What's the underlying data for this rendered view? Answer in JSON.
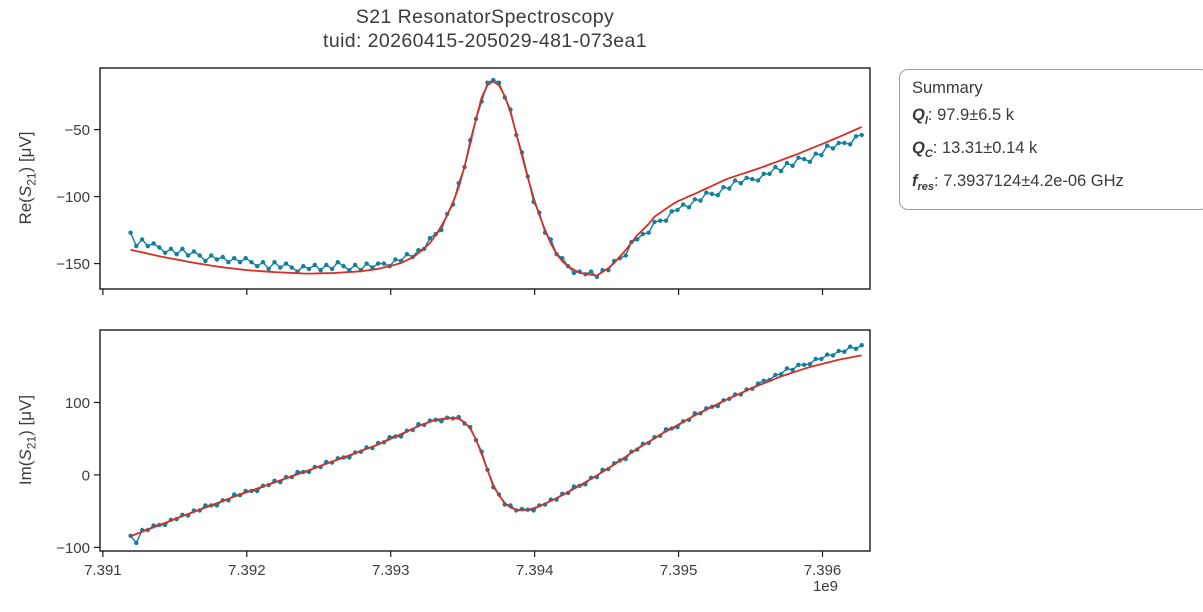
{
  "title": {
    "line1": "S21 ResonatorSpectroscopy",
    "line2": "tuid: 20260415-205029-481-073ea1"
  },
  "summary": {
    "heading": "Summary",
    "items": [
      {
        "sym": "Q",
        "sub": "l",
        "value": ": 97.9±6.5 k"
      },
      {
        "sym": "Q",
        "sub": "C",
        "value": ": 13.31±0.14 k"
      },
      {
        "sym": "f",
        "sub": "res",
        "value": ": 7.3937124±4.2e-06 GHz"
      }
    ]
  },
  "colors": {
    "data": "#11809c",
    "fit": "#d62f27",
    "axis": "#1a1a1a",
    "text": "#3c3c3c",
    "box_border": "#9b9b9b"
  },
  "chart_data": {
    "type": "line",
    "title": "S21 ResonatorSpectroscopy / tuid: 20260415-205029-481-073ea1",
    "xlabel_offset": "1e9",
    "x_unit": "Hz (axis shows GHz values × 1e9)",
    "xlim": [
      7.39098,
      7.39633
    ],
    "x_ticks": [
      {
        "v": 7.391,
        "label": "7.391"
      },
      {
        "v": 7.392,
        "label": "7.392"
      },
      {
        "v": 7.393,
        "label": "7.393"
      },
      {
        "v": 7.394,
        "label": "7.394"
      },
      {
        "v": 7.395,
        "label": "7.395"
      },
      {
        "v": 7.396,
        "label": "7.396"
      }
    ],
    "x_start": 7.3911924,
    "x_step": 4e-05,
    "n_points": 128,
    "f_res_ghz": 7.3937124,
    "plots": [
      {
        "name": "re",
        "ylabel": {
          "pre": "Re(",
          "sym": "S",
          "sub": "21",
          "post": ") [μV]"
        },
        "ylim": [
          -169,
          -4
        ],
        "y_ticks": [
          {
            "v": -50,
            "label": "−50"
          },
          {
            "v": -100,
            "label": "−100"
          },
          {
            "v": -150,
            "label": "−150"
          }
        ],
        "series": [
          {
            "name": "measured data",
            "role": "data",
            "y": [
              -127,
              -137,
              -132,
              -137,
              -135,
              -138,
              -142,
              -139,
              -143,
              -139,
              -144,
              -141,
              -144,
              -148,
              -144,
              -147,
              -145,
              -149,
              -146,
              -149,
              -146,
              -149,
              -152,
              -149,
              -154,
              -149,
              -153,
              -150,
              -153,
              -156,
              -152,
              -154,
              -151,
              -155,
              -151,
              -154,
              -149,
              -152,
              -155,
              -151,
              -155,
              -150,
              -153,
              -150,
              -150,
              -152,
              -147,
              -148,
              -143,
              -145,
              -140,
              -139,
              -131,
              -128,
              -125,
              -113,
              -106,
              -90,
              -78,
              -58,
              -42,
              -29,
              -15,
              -13,
              -15,
              -26,
              -35,
              -54,
              -67,
              -85,
              -104,
              -112,
              -127,
              -132,
              -143,
              -146,
              -152,
              -157,
              -156,
              -158,
              -156,
              -160,
              -155,
              -155,
              -148,
              -146,
              -144,
              -134,
              -132,
              -128,
              -127,
              -119,
              -118,
              -118,
              -111,
              -110,
              -106,
              -108,
              -102,
              -103,
              -97,
              -98,
              -99,
              -93,
              -94,
              -88,
              -90,
              -86,
              -87,
              -88,
              -83,
              -83,
              -78,
              -81,
              -75,
              -77,
              -71,
              -72,
              -74,
              -68,
              -69,
              -62,
              -64,
              -60,
              -60,
              -61,
              -55,
              -54
            ]
          },
          {
            "name": "fit",
            "role": "fit",
            "y": [
              -139.7,
              -140.7,
              -141.6,
              -142.6,
              -143.6,
              -144.5,
              -145.4,
              -146.2,
              -147,
              -147.8,
              -148.6,
              -149.4,
              -150.1,
              -150.8,
              -151.5,
              -152.2,
              -152.8,
              -153.3,
              -153.8,
              -154.3,
              -154.8,
              -155.2,
              -155.5,
              -155.8,
              -156.1,
              -156.4,
              -156.6,
              -156.8,
              -157,
              -157.2,
              -157.4,
              -157.5,
              -157.4,
              -157.3,
              -157.2,
              -157.1,
              -156.9,
              -156.6,
              -156.3,
              -156.1,
              -155.7,
              -155.2,
              -154.6,
              -154,
              -152.9,
              -151.9,
              -150.8,
              -149.5,
              -147.5,
              -145.5,
              -142.3,
              -138.7,
              -134.6,
              -128.9,
              -122,
              -114,
              -104.3,
              -93,
              -77.7,
              -60.7,
              -42,
              -26,
              -16.8,
              -14,
              -17,
              -25,
              -37,
              -53,
              -69.6,
              -85.7,
              -101,
              -113.7,
              -125,
              -135,
              -142.8,
              -148.3,
              -152.2,
              -154.6,
              -157,
              -157.7,
              -158.3,
              -159,
              -156.2,
              -153.4,
              -149.6,
              -144.8,
              -140,
              -134.4,
              -128.8,
              -124.8,
              -120.4,
              -115,
              -112.1,
              -109.1,
              -106.2,
              -103.5,
              -101.7,
              -99.8,
              -97.9,
              -96,
              -94,
              -92,
              -90,
              -88,
              -86.3,
              -84.8,
              -83.4,
              -82,
              -80.5,
              -79.1,
              -77.6,
              -76,
              -74.4,
              -72.8,
              -71.2,
              -69.6,
              -68,
              -66.2,
              -64.5,
              -62.7,
              -61,
              -59.2,
              -57.4,
              -55.6,
              -53.7,
              -51.8,
              -49.9,
              -48
            ]
          }
        ]
      },
      {
        "name": "im",
        "ylabel": {
          "pre": "Im(",
          "sym": "S",
          "sub": "21",
          "post": ") [μV]"
        },
        "ylim": [
          -105,
          200
        ],
        "y_ticks": [
          {
            "v": 100,
            "label": "100"
          },
          {
            "v": 0,
            "label": "0"
          },
          {
            "v": -100,
            "label": "−100"
          }
        ],
        "series": [
          {
            "name": "measured data",
            "role": "data",
            "y": [
              -84,
              -94,
              -76,
              -76,
              -70,
              -69,
              -69,
              -62,
              -61,
              -55,
              -56,
              -49,
              -49,
              -42,
              -42,
              -42,
              -35,
              -35,
              -27,
              -28,
              -22,
              -22,
              -22,
              -15,
              -14,
              -8,
              -10,
              -3,
              -3,
              4,
              4,
              4,
              11,
              11,
              18,
              17,
              23,
              24,
              24,
              31,
              32,
              38,
              37,
              44,
              45,
              52,
              53,
              53,
              61,
              62,
              70,
              69,
              75,
              76,
              74,
              79,
              78,
              80,
              71,
              66,
              48,
              32,
              7,
              -17,
              -27,
              -41,
              -42,
              -49,
              -47,
              -48,
              -49,
              -42,
              -41,
              -34,
              -34,
              -26,
              -25,
              -16,
              -15,
              -13,
              -4,
              -3,
              7,
              8,
              16,
              20,
              22,
              32,
              35,
              43,
              44,
              52,
              54,
              63,
              64,
              66,
              74,
              76,
              85,
              85,
              92,
              94,
              95,
              103,
              105,
              111,
              111,
              118,
              119,
              126,
              130,
              131,
              138,
              139,
              147,
              145,
              152,
              152,
              153,
              160,
              160,
              166,
              165,
              171,
              170,
              177,
              174,
              179
            ]
          },
          {
            "name": "fit",
            "role": "fit",
            "y": [
              -84.7,
              -81.6,
              -78.5,
              -75.4,
              -72.3,
              -69.3,
              -66.2,
              -63.1,
              -60,
              -57,
              -54,
              -51,
              -48,
              -45,
              -42,
              -39,
              -36,
              -33,
              -30,
              -27.2,
              -24.4,
              -21.6,
              -18.8,
              -16,
              -13.2,
              -10.4,
              -7.6,
              -4.8,
              -2,
              0.9,
              3.8,
              6.7,
              9.6,
              12.5,
              15.4,
              18.3,
              21.2,
              24.1,
              27,
              30,
              33,
              36,
              39,
              42,
              45.6,
              49.2,
              52.8,
              56.4,
              60,
              63.6,
              67.2,
              70.4,
              73.2,
              76,
              77.2,
              78.4,
              78.5,
              77.5,
              72.7,
              64.1,
              48.8,
              28.8,
              6.8,
              -14,
              -28.4,
              -38.6,
              -45,
              -48.1,
              -48.7,
              -48,
              -46,
              -43.2,
              -39.6,
              -36,
              -32,
              -28,
              -23.7,
              -19.2,
              -14.7,
              -10.1,
              -5.4,
              -0.6,
              4.2,
              9,
              14.4,
              19.8,
              25.2,
              30.6,
              36,
              40.8,
              45.6,
              50.4,
              55.2,
              60,
              64.4,
              68.8,
              73.2,
              77.6,
              82,
              86,
              90,
              94,
              98,
              102,
              105.6,
              109.2,
              112.8,
              116.4,
              120,
              123.2,
              126.4,
              129.6,
              132.8,
              136,
              138.6,
              141.2,
              143.8,
              146.4,
              149,
              151,
              153,
              155,
              157,
              159,
              160.5,
              162,
              163.5,
              165
            ]
          }
        ]
      }
    ]
  }
}
